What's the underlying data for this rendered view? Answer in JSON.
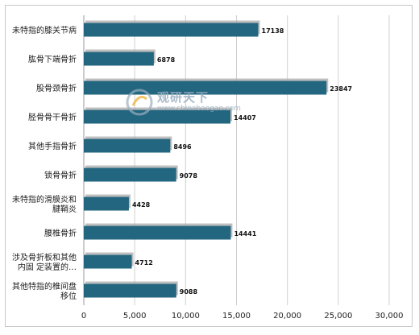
{
  "chart_data": {
    "type": "bar",
    "orientation": "horizontal",
    "categories": [
      "未特指的膝关节病",
      "肱骨下端骨折",
      "股骨颈骨折",
      "胫骨骨干骨折",
      "其他手指骨折",
      "锁骨骨折",
      "未特指的滑膜炎和腱鞘炎",
      "腰椎骨折",
      "涉及骨折板和其他内固 定装置的…",
      "其他特指的椎间盘移位"
    ],
    "category_lines": [
      [
        "未特指的膝关节病"
      ],
      [
        "肱骨下端骨折"
      ],
      [
        "股骨颈骨折"
      ],
      [
        "胫骨骨干骨折"
      ],
      [
        "其他手指骨折"
      ],
      [
        "锁骨骨折"
      ],
      [
        "未特指的滑膜炎和",
        "腱鞘炎"
      ],
      [
        "腰椎骨折"
      ],
      [
        "涉及骨折板和其他",
        "内固 定装置的…"
      ],
      [
        "其他特指的椎间盘",
        "移位"
      ]
    ],
    "values": [
      17138,
      6878,
      23847,
      14407,
      8496,
      9078,
      4428,
      14441,
      4712,
      9088
    ],
    "value_labels": [
      "17138",
      "6878",
      "23847",
      "14407",
      "8496",
      "9078",
      "4428",
      "14441",
      "4712",
      "9088"
    ],
    "xlim": [
      0,
      30000
    ],
    "xticks": [
      0,
      5000,
      10000,
      15000,
      20000,
      25000,
      30000
    ],
    "xtick_labels": [
      "0",
      "5,000",
      "10,000",
      "15,000",
      "20,000",
      "25,000",
      "30,000"
    ],
    "grid": true,
    "legend": "none",
    "colors": {
      "bar": "#23667f",
      "bar_shadow": "#a9a9a9",
      "grid": "#d0d0d0",
      "axis": "#999999"
    }
  },
  "watermark": {
    "text": "观研天下",
    "url": "www.chinabaogao.com"
  }
}
